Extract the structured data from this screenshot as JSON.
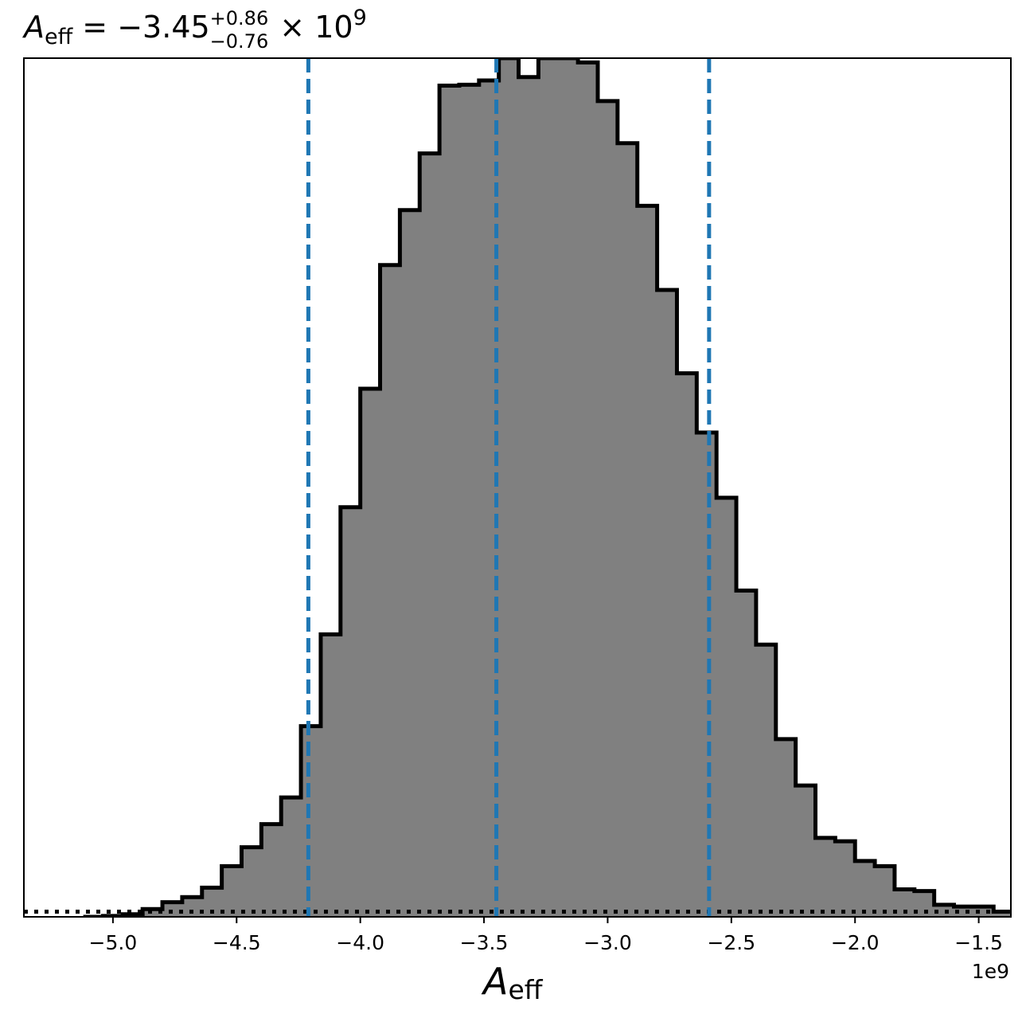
{
  "chart_data": {
    "type": "histogram",
    "title": {
      "symbol": "A",
      "symbol_sub": "eff",
      "value_text": " = −3.45",
      "upper_err": "+0.86",
      "lower_err": "−0.76",
      "times_text": " × 10",
      "exponent": "9"
    },
    "xlabel": {
      "symbol": "A",
      "sub": "eff"
    },
    "x_offset_label": "1e9",
    "xlim": [
      -5.36,
      -1.37
    ],
    "ylim": [
      0,
      1.0
    ],
    "xticks": [
      -5.0,
      -4.5,
      -4.0,
      -3.5,
      -3.0,
      -2.5,
      -2.0,
      -1.5
    ],
    "xtick_labels": [
      "−5.0",
      "−4.5",
      "−4.0",
      "−3.5",
      "−3.0",
      "−2.5",
      "−2.0",
      "−1.5"
    ],
    "bin_start": -5.12,
    "bin_width": 0.08,
    "bin_heights": [
      0.0,
      0.001,
      0.003,
      0.009,
      0.017,
      0.023,
      0.034,
      0.059,
      0.081,
      0.108,
      0.139,
      0.222,
      0.329,
      0.477,
      0.615,
      0.759,
      0.823,
      0.889,
      0.968,
      0.969,
      0.974,
      1.0,
      0.978,
      1.0,
      1.0,
      0.995,
      0.95,
      0.901,
      0.828,
      0.73,
      0.633,
      0.564,
      0.488,
      0.38,
      0.317,
      0.207,
      0.153,
      0.092,
      0.088,
      0.065,
      0.059,
      0.032,
      0.03,
      0.014,
      0.012,
      0.012,
      0.006,
      0.006,
      0.005,
      0.001,
      0.002,
      0.002
    ],
    "vlines": [
      -4.21,
      -3.45,
      -2.59
    ],
    "vline_color": "#1f77b4",
    "fill_color": "#808080",
    "edge_color": "#000000",
    "baseline_style": "dotted",
    "baseline_value": 0.006
  }
}
